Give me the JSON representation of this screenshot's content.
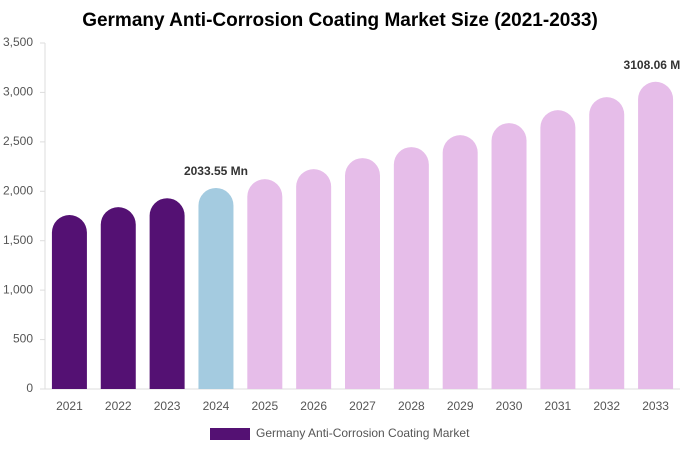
{
  "chart_data": {
    "type": "bar",
    "title": "Germany Anti-Corrosion Coating Market Size (2021-2033)",
    "categories": [
      "2021",
      "2022",
      "2023",
      "2024",
      "2025",
      "2026",
      "2027",
      "2028",
      "2029",
      "2030",
      "2031",
      "2032",
      "2033"
    ],
    "series": [
      {
        "name": "Germany Anti-Corrosion Coating Market",
        "color": "#541173",
        "point_colors": [
          "#541173",
          "#541173",
          "#541173",
          "#a4cbe0",
          "#e6bde9",
          "#e6bde9",
          "#e6bde9",
          "#e6bde9",
          "#e6bde9",
          "#e6bde9",
          "#e6bde9",
          "#e6bde9",
          "#e6bde9"
        ],
        "values": [
          1760,
          1840,
          1930,
          2033.55,
          2123,
          2224,
          2336,
          2447,
          2568,
          2690,
          2821,
          2952,
          3108.06
        ],
        "value_labels": [
          null,
          null,
          null,
          "2033.55 Mn",
          null,
          null,
          null,
          null,
          null,
          null,
          null,
          null,
          "3108.06 Mn"
        ]
      }
    ],
    "ylim": [
      0,
      3500
    ],
    "yticks": [
      0,
      500,
      {
        "value": 1000,
        "label": "1,000"
      },
      {
        "value": 1500,
        "label": "1,500"
      },
      {
        "value": 2000,
        "label": "2,000"
      },
      {
        "value": 2500,
        "label": "2,500"
      },
      {
        "value": 3000,
        "label": "3,000"
      },
      {
        "value": 3500,
        "label": "3,500"
      }
    ],
    "legend": "bottom"
  }
}
